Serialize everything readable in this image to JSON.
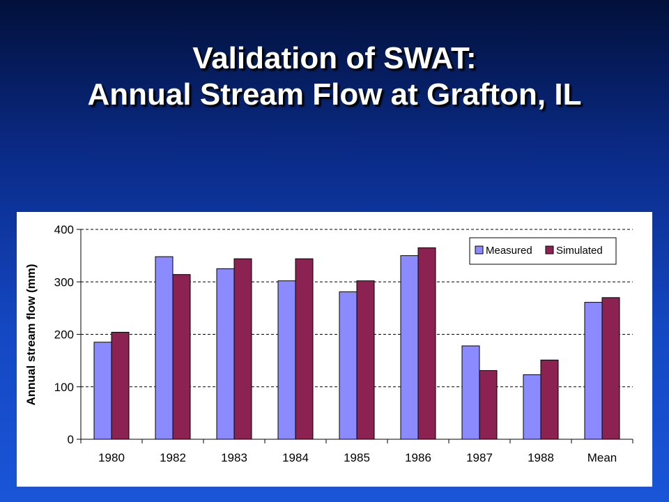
{
  "slide": {
    "title_line1": "Validation of SWAT:",
    "title_line2": "Annual Stream Flow at Grafton, IL"
  },
  "chart_data": {
    "type": "bar",
    "categories": [
      "1980",
      "1982",
      "1983",
      "1984",
      "1985",
      "1986",
      "1987",
      "1988",
      "Mean"
    ],
    "series": [
      {
        "name": "Measured",
        "values": [
          185,
          348,
          325,
          302,
          281,
          350,
          178,
          123,
          261
        ],
        "color": "#8b8bff"
      },
      {
        "name": "Simulated",
        "values": [
          204,
          314,
          344,
          344,
          302,
          365,
          131,
          151,
          270
        ],
        "color": "#8b2252"
      }
    ],
    "ylabel": "Annual stream flow (mm)",
    "xlabel": "",
    "ylim": [
      0,
      400
    ],
    "yticks": [
      0,
      100,
      200,
      300,
      400
    ],
    "grid": "dashed horizontal",
    "legend_position": "top-right"
  }
}
